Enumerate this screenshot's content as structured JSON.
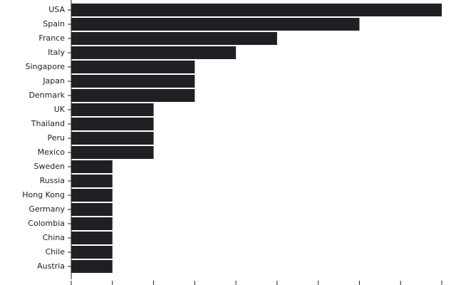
{
  "chart_data": {
    "type": "bar",
    "orientation": "horizontal",
    "categories": [
      "USA",
      "Spain",
      "France",
      "Italy",
      "Singapore",
      "Japan",
      "Denmark",
      "UK",
      "Thailand",
      "Peru",
      "Mexico",
      "Sweden",
      "Russia",
      "Hong Kong",
      "Germany",
      "Colombia",
      "China",
      "Chile",
      "Austria"
    ],
    "values": [
      9,
      7,
      5,
      4,
      3,
      3,
      3,
      2,
      2,
      2,
      2,
      1,
      1,
      1,
      1,
      1,
      1,
      1,
      1
    ],
    "xlim": [
      0,
      9
    ],
    "x_ticks": [
      0,
      1,
      2,
      3,
      4,
      5,
      6,
      7,
      8,
      9
    ],
    "grid": false,
    "legend": "none",
    "bar_color": "#1f2023"
  }
}
